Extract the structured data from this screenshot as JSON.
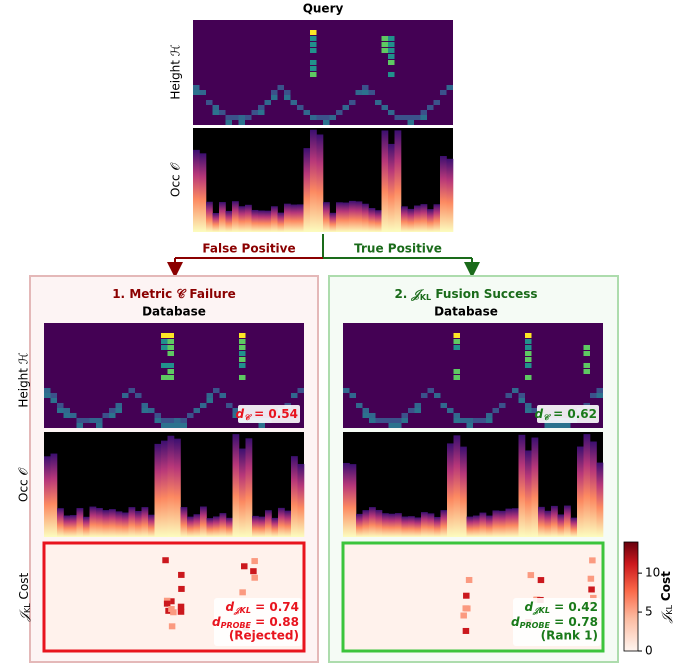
{
  "query": {
    "title": "Query",
    "height_label": "Height ℋ",
    "occ_label": "Occ 𝒪"
  },
  "branches": {
    "left": "False Positive",
    "right": "True Positive"
  },
  "row_labels": {
    "height": "Height ℋ",
    "occ": "Occ 𝒪",
    "cost_symbol": "𝒥",
    "cost_subscript": "KL",
    "cost_text": "Cost"
  },
  "panels": [
    {
      "prefix": "1.",
      "title": "Metric 𝒞 Failure",
      "subtitle": "Database",
      "dc": {
        "symbol": "d",
        "subscript": "𝒞",
        "text": " = 0.54"
      },
      "djkl": {
        "symbol": "d",
        "subscript": "𝒥KL",
        "text": " = 0.74"
      },
      "dprobe": {
        "symbol": "d",
        "subscript": "PROBE",
        "text": " = 0.88"
      },
      "verdict": "(Rejected)"
    },
    {
      "prefix": "2.",
      "symbol": "𝒥",
      "subscript": "KL",
      "title": "Fusion Success",
      "subtitle": "Database",
      "dc": {
        "symbol": "d",
        "subscript": "𝒞",
        "text": " = 0.62"
      },
      "djkl": {
        "symbol": "d",
        "subscript": "𝒥KL",
        "text": " = 0.42"
      },
      "dprobe": {
        "symbol": "d",
        "subscript": "PROBE",
        "text": " = 0.78"
      },
      "verdict": "(Rank 1)"
    }
  ],
  "colorbar": {
    "symbol": "𝒥",
    "subscript": "KL",
    "text": "Cost",
    "range": [
      0,
      14
    ],
    "ticks": [
      0,
      5,
      10
    ]
  }
}
